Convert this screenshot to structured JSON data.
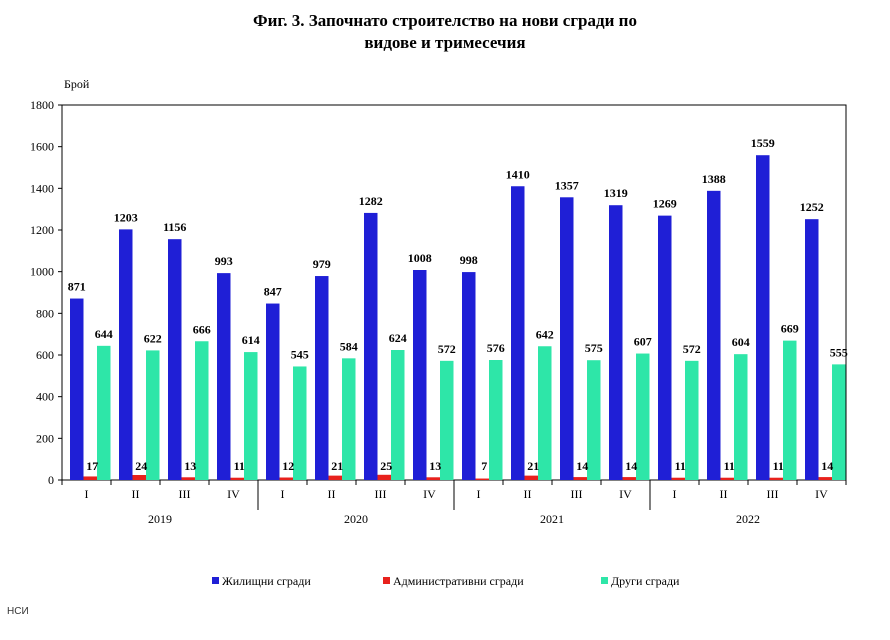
{
  "chart_data": {
    "type": "bar",
    "title_line1": "Фиг. 3. Започнато строителство на нови сгради по",
    "title_line2": "видове и тримесечия",
    "ylabel": "Брой",
    "xlabel": "",
    "ylim": [
      0,
      1800
    ],
    "yticks": [
      0,
      200,
      400,
      600,
      800,
      1000,
      1200,
      1400,
      1600,
      1800
    ],
    "grid": false,
    "legend_position": "bottom",
    "categories": [
      "I",
      "II",
      "III",
      "IV",
      "I",
      "II",
      "III",
      "IV",
      "I",
      "II",
      "III",
      "IV",
      "I",
      "II",
      "III",
      "IV"
    ],
    "groups": [
      {
        "label": "2019",
        "count": 4
      },
      {
        "label": "2020",
        "count": 4
      },
      {
        "label": "2021",
        "count": 4
      },
      {
        "label": "2022",
        "count": 4
      }
    ],
    "series": [
      {
        "name": "Жилищни сгради",
        "color": "#1f1fd6",
        "values": [
          871,
          1203,
          1156,
          993,
          847,
          979,
          1282,
          1008,
          998,
          1410,
          1357,
          1319,
          1269,
          1388,
          1559,
          1252
        ]
      },
      {
        "name": "Административни сгради",
        "color": "#e8211c",
        "values": [
          17,
          24,
          13,
          11,
          12,
          21,
          25,
          13,
          7,
          21,
          14,
          14,
          11,
          11,
          11,
          14
        ]
      },
      {
        "name": "Други сгради",
        "color": "#2ee6a8",
        "values": [
          644,
          622,
          666,
          614,
          545,
          584,
          624,
          572,
          576,
          642,
          575,
          607,
          572,
          604,
          669,
          555
        ]
      }
    ]
  },
  "source": "НСИ"
}
